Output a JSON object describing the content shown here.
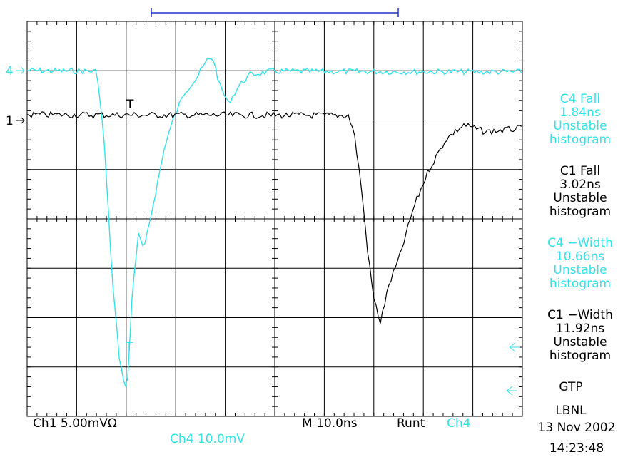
{
  "markers": {
    "ch4": "4",
    "ch1": "1"
  },
  "measurements": [
    {
      "name": "C4 Fall",
      "value": "1.84ns",
      "status": "Unstable",
      "detail": "histogram",
      "color": "#33e3ea"
    },
    {
      "name": "C1 Fall",
      "value": "3.02ns",
      "status": "Unstable",
      "detail": "histogram",
      "color": "#000000"
    },
    {
      "name": "C4 −Width",
      "value": "10.66ns",
      "status": "Unstable",
      "detail": "histogram",
      "color": "#33e3ea"
    },
    {
      "name": "C1 −Width",
      "value": "11.92ns",
      "status": "Unstable",
      "detail": "histogram",
      "color": "#000000"
    }
  ],
  "footer": {
    "ch1": "Ch1  5.00mVΩ",
    "ch4": "Ch4  10.0mV",
    "timebase": "M 10.0ns",
    "trigger": "Runt",
    "trigger_source": "Ch4"
  },
  "label": {
    "line1": "GTP",
    "line2": "LBNL",
    "date": "13 Nov 2002",
    "time": "14:23:48"
  }
}
